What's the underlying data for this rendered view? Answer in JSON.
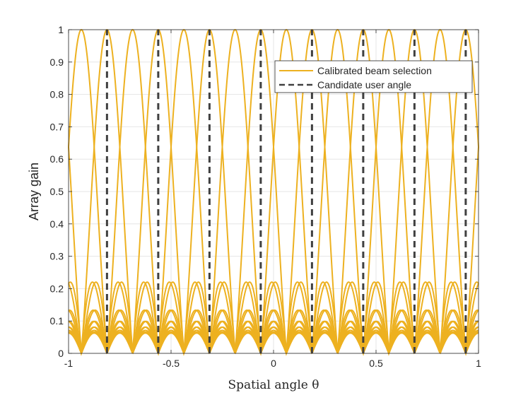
{
  "chart_data": {
    "type": "line",
    "xlabel": "Spatial angle θ",
    "ylabel": "Array gain",
    "xlim": [
      -1,
      1
    ],
    "ylim": [
      0,
      1
    ],
    "xticks": [
      -1,
      -0.5,
      0,
      0.5,
      1
    ],
    "xtick_labels": [
      "-1",
      "-0.5",
      "0",
      "0.5",
      "1"
    ],
    "yticks": [
      0,
      0.1,
      0.2,
      0.3,
      0.4,
      0.5,
      0.6,
      0.7,
      0.8,
      0.9,
      1
    ],
    "ytick_labels": [
      "0",
      "0.1",
      "0.2",
      "0.3",
      "0.4",
      "0.5",
      "0.6",
      "0.7",
      "0.8",
      "0.9",
      "1"
    ],
    "grid": true,
    "legend_position": "top-right",
    "array_size": 16,
    "series": [
      {
        "name": "Calibrated beam selection",
        "style": "solid",
        "color": "#EDB120",
        "beam_peaks": [
          -0.8125,
          -0.5625,
          -0.3125,
          -0.0625,
          0.1875,
          0.4375,
          0.6875,
          0.9375,
          -0.9375,
          -0.6875,
          -0.4375,
          -0.1875,
          0.0625,
          0.3125,
          0.5625,
          0.8125
        ],
        "peak_gain": 1
      },
      {
        "name": "Candidate user angle",
        "style": "dashed",
        "color": "#404040",
        "x": [
          -0.8125,
          -0.5625,
          -0.3125,
          -0.0625,
          0.1875,
          0.4375,
          0.6875,
          0.9375
        ],
        "y_range": [
          0,
          1
        ]
      }
    ]
  }
}
